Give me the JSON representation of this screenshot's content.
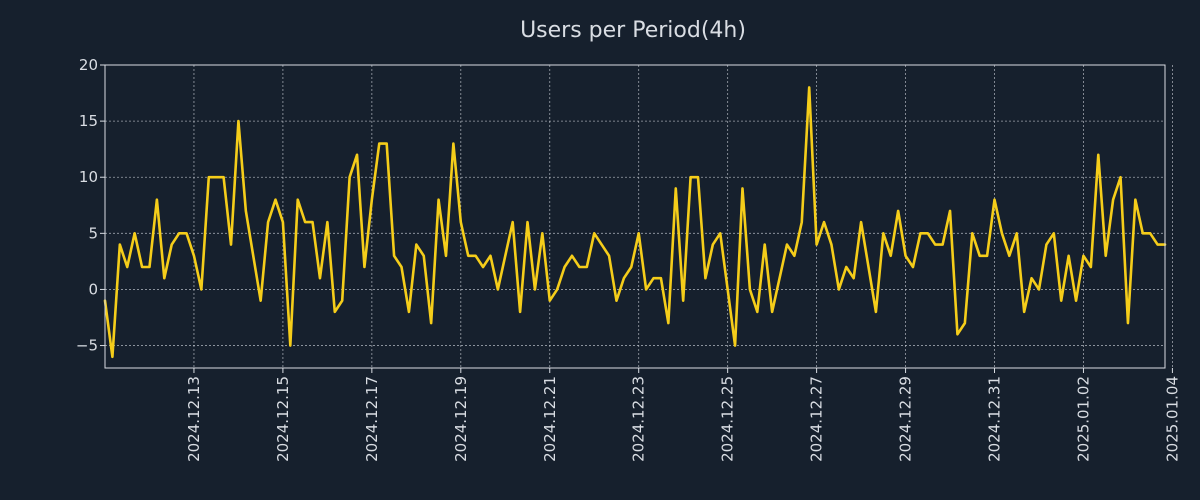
{
  "chart_data": {
    "type": "line",
    "title": "Users per Period(4h)",
    "xlabel": "",
    "ylabel": "",
    "ylim": [
      -7,
      20
    ],
    "yticks": [
      -5,
      0,
      5,
      10,
      15,
      20
    ],
    "grid": true,
    "color": "#f5cd1a",
    "background": "#16202d",
    "x_start": "2024-12-11T00:00",
    "step_hours": 4,
    "x_end": "2025-01-04T16:00",
    "xtick_labels": [
      "2024.12.13",
      "2024.12.15",
      "2024.12.17",
      "2024.12.19",
      "2024.12.21",
      "2024.12.23",
      "2024.12.25",
      "2024.12.27",
      "2024.12.29",
      "2024.12.31",
      "2025.01.02",
      "2025.01.04"
    ],
    "xtick_positions_hours": [
      48,
      96,
      144,
      192,
      240,
      288,
      336,
      384,
      432,
      480,
      528,
      576
    ],
    "series": [
      {
        "name": "Users",
        "values": [
          -1,
          -6,
          4,
          2,
          5,
          2,
          2,
          8,
          1,
          4,
          5,
          5,
          3,
          0,
          10,
          10,
          10,
          4,
          15,
          7,
          3,
          -1,
          6,
          8,
          6,
          -5,
          8,
          6,
          6,
          1,
          6,
          -2,
          -1,
          10,
          12,
          2,
          8,
          13,
          13,
          3,
          2,
          -2,
          4,
          3,
          -3,
          8,
          3,
          13,
          6,
          3,
          3,
          2,
          3,
          0,
          3,
          6,
          -2,
          6,
          0,
          5,
          -1,
          0,
          2,
          3,
          2,
          2,
          5,
          4,
          3,
          -1,
          1,
          2,
          5,
          0,
          1,
          1,
          -3,
          9,
          -1,
          10,
          10,
          1,
          4,
          5,
          0,
          -5,
          9,
          0,
          -2,
          4,
          -2,
          1,
          4,
          3,
          6,
          18,
          4,
          6,
          4,
          0,
          2,
          1,
          6,
          2,
          -2,
          5,
          3,
          7,
          3,
          2,
          5,
          5,
          4,
          4,
          7,
          -4,
          -3,
          5,
          3,
          3,
          8,
          5,
          3,
          5,
          -2,
          1,
          0,
          4,
          5,
          -1,
          3,
          -1,
          3,
          2,
          12,
          3,
          8,
          10,
          -3,
          8,
          5,
          5,
          4,
          4
        ]
      }
    ]
  }
}
